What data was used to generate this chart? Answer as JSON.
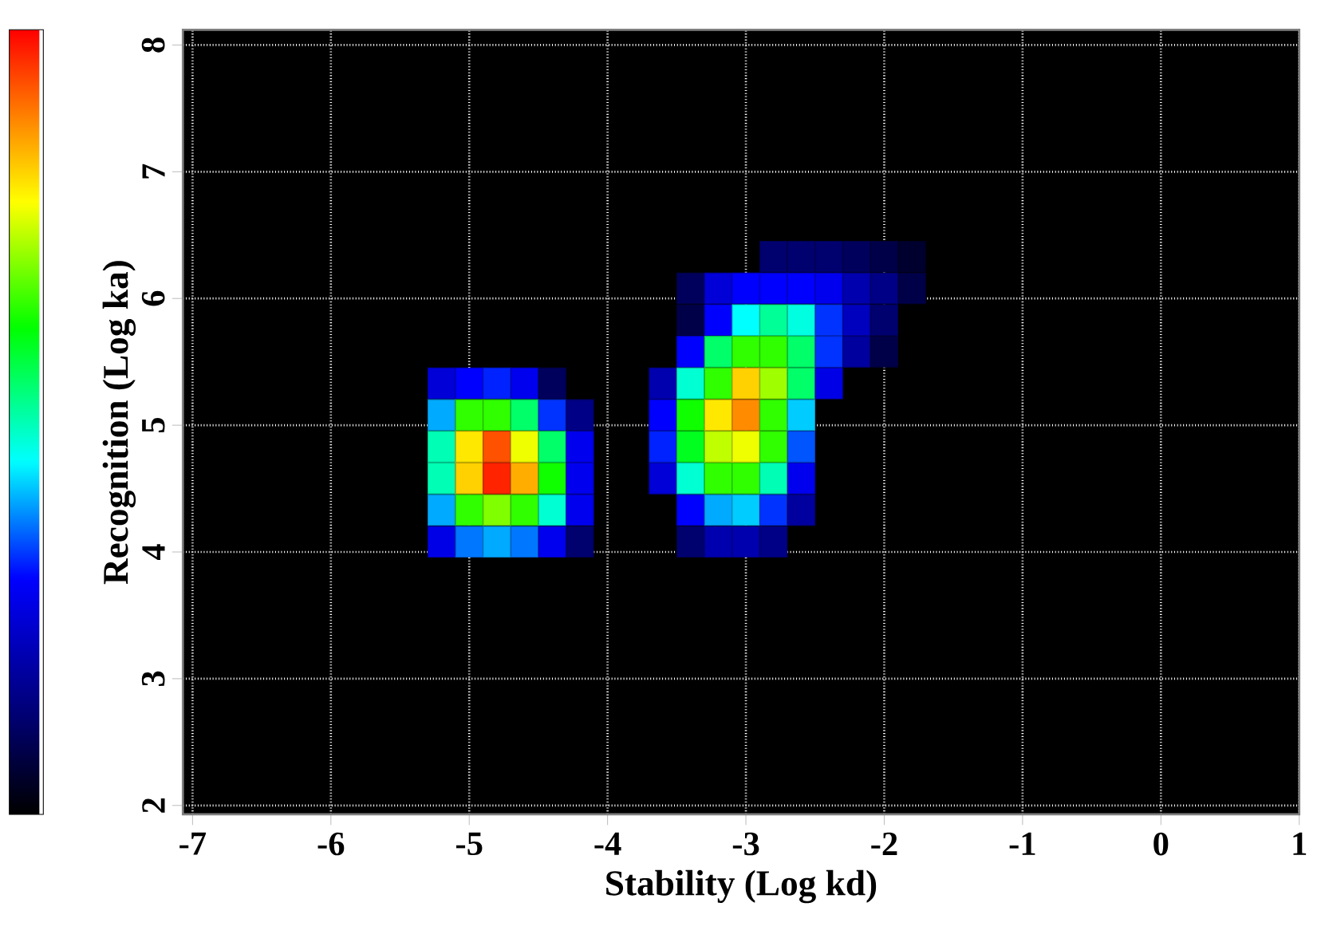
{
  "chart_data": {
    "type": "scatter",
    "xlabel": "Stability (Log kd)",
    "ylabel": "Recognition (Log ka)",
    "xlim": [
      -7.07,
      1.0
    ],
    "ylim": [
      1.93,
      8.12
    ],
    "xticks": [
      -7,
      -6,
      -5,
      -4,
      -3,
      -2,
      -1,
      0,
      1
    ],
    "yticks": [
      2,
      3,
      4,
      5,
      6,
      7,
      8
    ],
    "grid": true,
    "marker": "square",
    "x": [
      -5.2,
      -5.0,
      -4.8,
      -4.6,
      -4.4,
      -5.2,
      -5.0,
      -4.8,
      -4.6,
      -4.4,
      -4.2,
      -5.2,
      -5.0,
      -4.8,
      -4.6,
      -4.4,
      -4.2,
      -5.2,
      -5.0,
      -4.8,
      -4.6,
      -4.4,
      -4.2,
      -5.2,
      -5.0,
      -4.8,
      -4.6,
      -4.4,
      -4.2,
      -5.2,
      -5.0,
      -4.8,
      -4.6,
      -4.4,
      -4.2,
      -2.8,
      -2.6,
      -2.4,
      -2.2,
      -2.0,
      -1.8,
      -3.4,
      -3.2,
      -3.0,
      -2.8,
      -2.6,
      -2.4,
      -2.2,
      -2.0,
      -1.8,
      -3.4,
      -3.2,
      -3.0,
      -2.8,
      -2.6,
      -2.4,
      -2.2,
      -2.0,
      -3.4,
      -3.2,
      -3.0,
      -2.8,
      -2.6,
      -2.4,
      -2.2,
      -2.0,
      -3.6,
      -3.4,
      -3.2,
      -3.0,
      -2.8,
      -2.6,
      -2.4,
      -3.6,
      -3.4,
      -3.2,
      -3.0,
      -2.8,
      -2.6,
      -3.6,
      -3.4,
      -3.2,
      -3.0,
      -2.8,
      -2.6,
      -3.6,
      -3.4,
      -3.2,
      -3.0,
      -2.8,
      -2.6,
      -3.4,
      -3.2,
      -3.0,
      -2.8,
      -2.6,
      -3.4,
      -3.2,
      -3.0,
      -2.8
    ],
    "values": [
      5.33,
      5.33,
      5.33,
      5.33,
      5.33,
      5.08,
      5.08,
      5.08,
      5.08,
      5.08,
      5.08,
      4.83,
      4.83,
      4.83,
      4.83,
      4.83,
      4.83,
      4.58,
      4.58,
      4.58,
      4.58,
      4.58,
      4.58,
      4.33,
      4.33,
      4.33,
      4.33,
      4.33,
      4.33,
      4.08,
      4.08,
      4.08,
      4.08,
      4.08,
      4.08,
      6.33,
      6.33,
      6.33,
      6.33,
      6.33,
      6.33,
      6.08,
      6.08,
      6.08,
      6.08,
      6.08,
      6.08,
      6.08,
      6.08,
      6.08,
      5.83,
      5.83,
      5.83,
      5.83,
      5.83,
      5.83,
      5.83,
      5.83,
      5.58,
      5.58,
      5.58,
      5.58,
      5.58,
      5.58,
      5.58,
      5.58,
      5.33,
      5.33,
      5.33,
      5.33,
      5.33,
      5.33,
      5.33,
      5.08,
      5.08,
      5.08,
      5.08,
      5.08,
      5.08,
      4.83,
      4.83,
      4.83,
      4.83,
      4.83,
      4.83,
      4.58,
      4.58,
      4.58,
      4.58,
      4.58,
      4.58,
      4.33,
      4.33,
      4.33,
      4.33,
      4.33,
      4.08,
      4.08,
      4.08,
      4.08
    ],
    "colors": [
      "#0000d7",
      "#0000ff",
      "#0022ff",
      "#0000ef",
      "#00005c",
      "#00aaff",
      "#30ff00",
      "#30ff00",
      "#00ff69",
      "#0033ff",
      "#000086",
      "#00ffb4",
      "#ffe800",
      "#ff5200",
      "#efff00",
      "#00ff69",
      "#0000ef",
      "#00ffb4",
      "#ffd100",
      "#ff2300",
      "#ffae00",
      "#10ff00",
      "#0000ef",
      "#00aaff",
      "#30ff00",
      "#80ff00",
      "#30ff00",
      "#00ffd2",
      "#0000ef",
      "#0000e7",
      "#0077ff",
      "#00aaff",
      "#0077ff",
      "#0000ef",
      "#00006e",
      "#00006e",
      "#00006e",
      "#00006e",
      "#00005c",
      "#000049",
      "#00002e",
      "#00005c",
      "#0000d7",
      "#0000ff",
      "#0000ff",
      "#0000ff",
      "#0000ef",
      "#0000ae",
      "#000086",
      "#000049",
      "#000049",
      "#0000ff",
      "#00ffff",
      "#00ff96",
      "#00ffe1",
      "#0033ff",
      "#0000bf",
      "#00006e",
      "#0000ff",
      "#00ff69",
      "#30ff00",
      "#30ff00",
      "#00ff69",
      "#0033ff",
      "#00009e",
      "#000049",
      "#0000ae",
      "#00ffd2",
      "#30ff00",
      "#ffd100",
      "#9fff00",
      "#00ff69",
      "#0000e7",
      "#0000ff",
      "#10ff00",
      "#ffe800",
      "#ff8c00",
      "#30ff00",
      "#00ccff",
      "#0022ff",
      "#00ff1e",
      "#bfff00",
      "#efff00",
      "#30ff00",
      "#0055ff",
      "#0000d7",
      "#00ffd2",
      "#30ff00",
      "#30ff00",
      "#00ffb4",
      "#0000ef",
      "#0000ff",
      "#00aaff",
      "#00ccff",
      "#0033ff",
      "#00009e",
      "#00006e",
      "#0000ae",
      "#0000ae",
      "#000086"
    ]
  }
}
